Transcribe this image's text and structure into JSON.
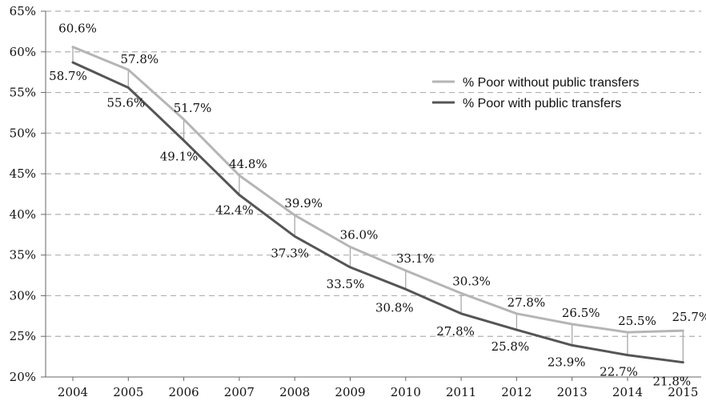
{
  "chart_data": {
    "type": "line",
    "categories": [
      "2004",
      "2005",
      "2006",
      "2007",
      "2008",
      "2009",
      "2010",
      "2011",
      "2012",
      "2013",
      "2014",
      "2015"
    ],
    "series": [
      {
        "name": "% Poor without public transfers",
        "values": [
          60.6,
          57.8,
          51.7,
          44.8,
          39.9,
          36.0,
          33.1,
          30.3,
          27.8,
          26.5,
          25.5,
          25.7
        ],
        "labels": [
          "60.6%",
          "57.8%",
          "51.7%",
          "44.8%",
          "39.9%",
          "36.0%",
          "33.1%",
          "30.3%",
          "27.8%",
          "26.5%",
          "25.5%",
          "25.7%"
        ],
        "color": "#b5b5b5"
      },
      {
        "name": "% Poor with public transfers",
        "values": [
          58.7,
          55.6,
          49.1,
          42.4,
          37.3,
          33.5,
          30.8,
          27.8,
          25.8,
          23.9,
          22.7,
          21.8
        ],
        "labels": [
          "58.7%",
          "55.6%",
          "49.1%",
          "42.4%",
          "37.3%",
          "33.5%",
          "30.8%",
          "27.8%",
          "25.8%",
          "23.9%",
          "22.7%",
          "21.8%"
        ],
        "color": "#555555"
      }
    ],
    "ylim": [
      20,
      65
    ],
    "yticks": [
      20,
      25,
      30,
      35,
      40,
      45,
      50,
      55,
      60,
      65
    ],
    "ytick_labels": [
      "20%",
      "25%",
      "30%",
      "35%",
      "40%",
      "45%",
      "50%",
      "55%",
      "60%",
      "65%"
    ],
    "grid": "horizontal dashed",
    "legend_position": "top-right"
  }
}
